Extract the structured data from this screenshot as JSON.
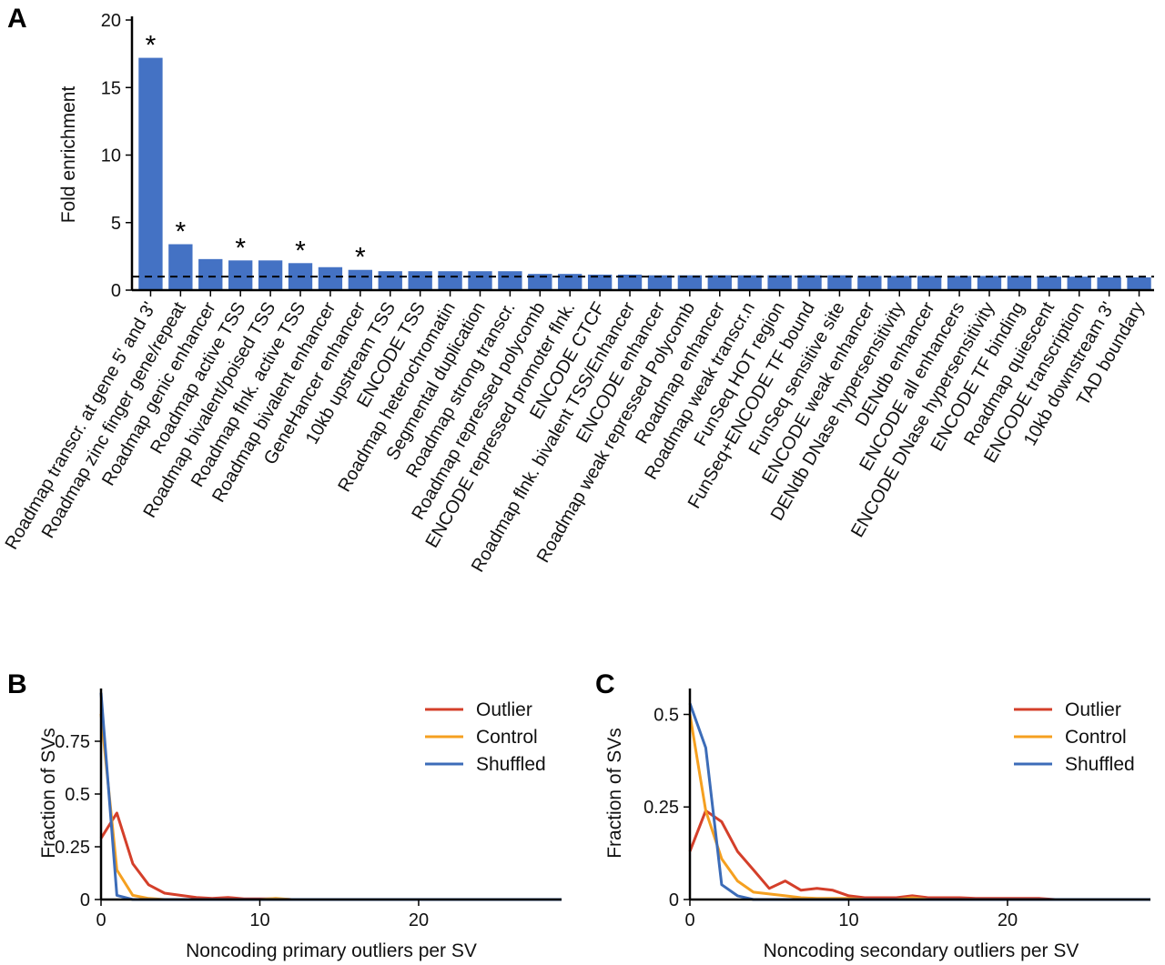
{
  "panels": {
    "a": "A",
    "b": "B",
    "c": "C"
  },
  "colors": {
    "bar": "#4472c4",
    "outlier": "#d43f2a",
    "control": "#f5a020",
    "shuffled": "#3c6cb8",
    "axis": "#000000"
  },
  "chart_data": [
    {
      "type": "bar",
      "panel": "A",
      "ylabel": "Fold enrichment",
      "ylim": [
        0,
        20
      ],
      "yticks": [
        0,
        5,
        10,
        15,
        20
      ],
      "reference_line": 1,
      "categories": [
        "Roadmap transcr. at gene 5' and 3'",
        "Roadmap zinc finger gene/repeat",
        "Roadmap genic enhancer",
        "Roadmap active TSS",
        "Roadmap bivalent/poised TSS",
        "Roadmap flnk. active TSS",
        "Roadmap bivalent enhancer",
        "GeneHancer enhancer",
        "10kb upstream TSS",
        "ENCODE TSS",
        "Roadmap heterochromatin",
        "Segmental duplication",
        "Roadmap strong transcr.",
        "Roadmap repressed polycomb",
        "ENCODE repressed promoter flnk.",
        "ENCODE CTCF",
        "Roadmap flnk. bivalent TSS/Enhancer",
        "ENCODE enhancer",
        "Roadmap weak repressed Polycomb",
        "Roadmap enhancer",
        "Roadmap weak transcr.n",
        "FunSeq HOT region",
        "FunSeq+ENCODE TF bound",
        "FunSeq sensitive site",
        "ENCODE weak enhancer",
        "DENdb DNase hypersensitivity",
        "DENdb enhancer",
        "ENCODE all enhancers",
        "ENCODE DNase hypersensitivity",
        "ENCODE TF binding",
        "Roadmap quiescent",
        "ENCODE transcription",
        "10kb downstream 3'",
        "TAD boundary"
      ],
      "values": [
        17.2,
        3.4,
        2.3,
        2.2,
        2.2,
        2.0,
        1.7,
        1.5,
        1.4,
        1.4,
        1.4,
        1.4,
        1.4,
        1.2,
        1.2,
        1.15,
        1.15,
        1.1,
        1.1,
        1.1,
        1.1,
        1.1,
        1.1,
        1.1,
        1.05,
        1.05,
        1.05,
        1.05,
        1.05,
        1.05,
        1.0,
        1.0,
        0.95,
        0.95
      ],
      "significant_marker": "*",
      "significant": [
        true,
        true,
        false,
        true,
        false,
        true,
        false,
        true,
        false,
        false,
        false,
        false,
        false,
        false,
        false,
        false,
        false,
        false,
        false,
        false,
        false,
        false,
        false,
        false,
        false,
        false,
        false,
        false,
        false,
        false,
        false,
        false,
        false,
        false
      ]
    },
    {
      "type": "line",
      "panel": "B",
      "xlabel": "Noncoding primary outliers per SV",
      "ylabel": "Fraction of SVs",
      "xlim": [
        0,
        29
      ],
      "ylim": [
        0,
        1
      ],
      "xticks": [
        0,
        10,
        20
      ],
      "yticks": [
        0,
        0.25,
        0.5,
        0.75
      ],
      "ytick_labels": [
        "0",
        "0.25",
        "0.5",
        "0.75"
      ],
      "legend": "top-right",
      "series": [
        {
          "name": "Outlier",
          "color_key": "outlier",
          "x": [
            0,
            1,
            2,
            3,
            4,
            5,
            6,
            7,
            8,
            9,
            10,
            11,
            12,
            13,
            14,
            15,
            16,
            17,
            18,
            19,
            20,
            21,
            22,
            23,
            24,
            25,
            26,
            27,
            28,
            29
          ],
          "y": [
            0.29,
            0.41,
            0.17,
            0.07,
            0.03,
            0.02,
            0.01,
            0.005,
            0.01,
            0.003,
            0.003,
            0.003,
            0,
            0,
            0,
            0,
            0,
            0,
            0,
            0,
            0,
            0,
            0,
            0,
            0,
            0,
            0,
            0,
            0,
            0
          ]
        },
        {
          "name": "Control",
          "color_key": "control",
          "x": [
            0,
            1,
            2,
            3,
            4,
            5,
            6,
            7,
            8,
            9,
            10,
            11,
            12,
            13,
            14,
            15,
            16,
            17,
            18,
            19,
            20,
            21,
            22,
            23,
            24,
            25,
            26,
            27,
            28,
            29
          ],
          "y": [
            0.88,
            0.14,
            0.02,
            0.005,
            0,
            0,
            0,
            0,
            0,
            0,
            0,
            0.005,
            0,
            0,
            0,
            0,
            0,
            0,
            0,
            0,
            0,
            0,
            0,
            0,
            0,
            0,
            0,
            0,
            0,
            0
          ]
        },
        {
          "name": "Shuffled",
          "color_key": "shuffled",
          "x": [
            0,
            1,
            2,
            3,
            4,
            5,
            6,
            7,
            8,
            9,
            10,
            11,
            12,
            13,
            14,
            15,
            16,
            17,
            18,
            19,
            20,
            21,
            22,
            23,
            24,
            25,
            26,
            27,
            28,
            29
          ],
          "y": [
            0.98,
            0.02,
            0,
            0,
            0,
            0,
            0,
            0,
            0,
            0,
            0,
            0,
            0,
            0,
            0,
            0,
            0,
            0,
            0,
            0,
            0,
            0,
            0,
            0,
            0,
            0,
            0,
            0,
            0,
            0
          ]
        }
      ]
    },
    {
      "type": "line",
      "panel": "C",
      "xlabel": "Noncoding secondary outliers per SV",
      "ylabel": "Fraction of SVs",
      "xlim": [
        0,
        29
      ],
      "ylim": [
        0,
        0.57
      ],
      "xticks": [
        0,
        10,
        20
      ],
      "yticks": [
        0,
        0.25,
        0.5
      ],
      "ytick_labels": [
        "0",
        "0.25",
        "0.5"
      ],
      "legend": "top-right",
      "series": [
        {
          "name": "Outlier",
          "color_key": "outlier",
          "x": [
            0,
            1,
            2,
            3,
            4,
            5,
            6,
            7,
            8,
            9,
            10,
            11,
            12,
            13,
            14,
            15,
            16,
            17,
            18,
            19,
            20,
            21,
            22,
            23,
            24,
            25,
            26,
            27,
            28,
            29
          ],
          "y": [
            0.13,
            0.24,
            0.21,
            0.13,
            0.08,
            0.03,
            0.05,
            0.025,
            0.03,
            0.025,
            0.01,
            0.005,
            0.005,
            0.005,
            0.01,
            0.005,
            0.005,
            0.005,
            0.003,
            0.003,
            0.003,
            0.003,
            0.003,
            0,
            0,
            0,
            0,
            0,
            0,
            0
          ]
        },
        {
          "name": "Control",
          "color_key": "control",
          "x": [
            0,
            1,
            2,
            3,
            4,
            5,
            6,
            7,
            8,
            9,
            10,
            11,
            12,
            13,
            14,
            15,
            16,
            17,
            18,
            19,
            20,
            21,
            22,
            23,
            24,
            25,
            26,
            27,
            28,
            29
          ],
          "y": [
            0.5,
            0.24,
            0.11,
            0.05,
            0.02,
            0.015,
            0.01,
            0.005,
            0.003,
            0.003,
            0.003,
            0,
            0,
            0,
            0.005,
            0,
            0,
            0,
            0,
            0,
            0,
            0,
            0,
            0,
            0,
            0,
            0,
            0,
            0,
            0
          ]
        },
        {
          "name": "Shuffled",
          "color_key": "shuffled",
          "x": [
            0,
            1,
            2,
            3,
            4,
            5,
            6,
            7,
            8,
            9,
            10,
            11,
            12,
            13,
            14,
            15,
            16,
            17,
            18,
            19,
            20,
            21,
            22,
            23,
            24,
            25,
            26,
            27,
            28,
            29
          ],
          "y": [
            0.53,
            0.41,
            0.04,
            0.01,
            0,
            0,
            0,
            0,
            0,
            0,
            0,
            0,
            0,
            0,
            0,
            0,
            0,
            0,
            0,
            0,
            0,
            0,
            0,
            0,
            0,
            0,
            0,
            0,
            0,
            0
          ]
        }
      ]
    }
  ]
}
